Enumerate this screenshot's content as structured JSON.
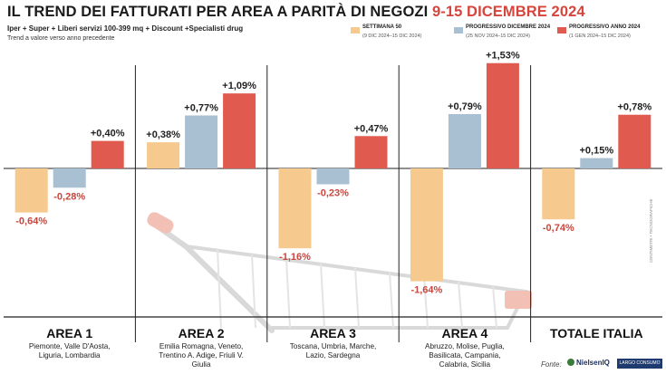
{
  "header": {
    "title_main": "IL TREND DEI FATTURATI PER AREA A PARITÀ DI NEGOZI",
    "title_period": "9-15 DICEMBRE 2024",
    "subtitle": "Iper + Super + Liberi servizi 100-399 mq + Discount +Specialisti drug",
    "note": "Trend a valore verso anno precedente"
  },
  "legend": [
    {
      "label": "SETTIMANA 50",
      "sub": "(9 DIC 2024–15 DIC 2024)",
      "color": "#f6c98e"
    },
    {
      "label": "PROGRESSIVO DICEMBRE 2024",
      "sub": "(25 NOV 2024–15 DIC 2024)",
      "color": "#a9bfd2"
    },
    {
      "label": "PROGRESSIVO ANNO 2024",
      "sub": "(1 GEN 2024–15 DIC 2024)",
      "color": "#e05a4f"
    }
  ],
  "chart_data": {
    "type": "bar",
    "categories": [
      "AREA 1",
      "AREA 2",
      "AREA 3",
      "AREA 4",
      "TOTALE ITALIA"
    ],
    "category_regions": [
      "Piemonte, Valle D'Aosta, Liguria, Lombardia",
      "Emilia Romagna, Veneto, Trentino A. Adige, Friuli V. Giulia",
      "Toscana, Umbria, Marche, Lazio, Sardegna",
      "Abruzzo, Molise, Puglia, Basilicata, Campania, Calabria, Sicilia",
      ""
    ],
    "series": [
      {
        "name": "SETTIMANA 50",
        "values": [
          -0.64,
          0.38,
          -1.16,
          -1.64,
          -0.74
        ],
        "labels": [
          "-0,64%",
          "+0,38%",
          "-1,16%",
          "-1,64%",
          "-0,74%"
        ],
        "color": "#f6c98e"
      },
      {
        "name": "PROGRESSIVO DICEMBRE 2024",
        "values": [
          -0.28,
          0.77,
          -0.23,
          0.79,
          0.15
        ],
        "labels": [
          "-0,28%",
          "+0,77%",
          "-0,23%",
          "+0,79%",
          "+0,15%"
        ],
        "color": "#a9bfd2"
      },
      {
        "name": "PROGRESSIVO ANNO 2024",
        "values": [
          0.4,
          1.09,
          0.47,
          1.53,
          0.78
        ],
        "labels": [
          "+0,40%",
          "+1,09%",
          "+0,47%",
          "+1,53%",
          "+0,78%"
        ],
        "color": "#e05a4f"
      }
    ],
    "ylim": [
      -1.8,
      1.6
    ],
    "grid": false,
    "legend_position": "top-right",
    "colors": {
      "negative_label": "#c8463e",
      "positive_label": "#222222"
    }
  },
  "footer": {
    "fonte": "Fonte:",
    "source_name": "NielsenIQ",
    "source_partner": "LARGO CONSUMO",
    "credit": "CENTIMETRI • TECNOGRAFICHE"
  }
}
